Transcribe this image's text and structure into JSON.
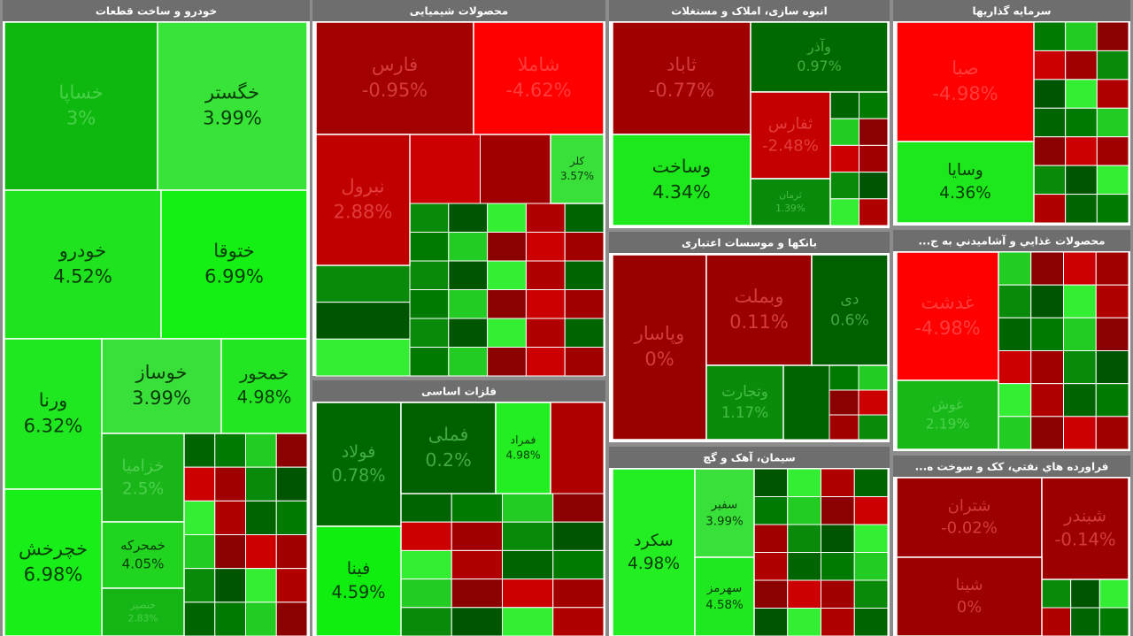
{
  "panels": [
    {
      "title": "خودرو و ساخت قطعات",
      "tiles": [
        {
          "name": "خساپا",
          "change": "3%",
          "color": "#0fb80f"
        },
        {
          "name": "خگستر",
          "change": "3.99%",
          "color": "#37e437"
        },
        {
          "name": "خودرو",
          "change": "4.52%",
          "color": "#1fe31f"
        },
        {
          "name": "ختوقا",
          "change": "6.99%",
          "color": "#14f014"
        },
        {
          "name": "ورنا",
          "change": "6.32%",
          "color": "#20e820"
        },
        {
          "name": "خوساز",
          "change": "3.99%",
          "color": "#3ae03a"
        },
        {
          "name": "خمحور",
          "change": "4.98%",
          "color": "#22e622"
        },
        {
          "name": "خزامیا",
          "change": "2.5%",
          "color": "#19b519"
        },
        {
          "name": "خمحرکه",
          "change": "4.05%",
          "color": "#20d420"
        },
        {
          "name": "خنصیر",
          "change": "2.83%",
          "color": "#14b514"
        },
        {
          "name": "خچرخش",
          "change": "6.98%",
          "color": "#18ee18"
        }
      ]
    },
    {
      "title": "محصولات شیمیایی",
      "tiles": [
        {
          "name": "فارس",
          "change": "-0.95%",
          "color": "#a30000"
        },
        {
          "name": "شاملا",
          "change": "-4.62%",
          "color": "#ff0000"
        },
        {
          "name": "نبرول",
          "change": "2.88%",
          "color": "#c00000"
        },
        {
          "name": "کلر",
          "change": "3.57%",
          "color": "#3ae03a"
        }
      ]
    },
    {
      "title": "فلزات اساسی",
      "tiles": [
        {
          "name": "فولاد",
          "change": "0.78%",
          "color": "#006800"
        },
        {
          "name": "فملی",
          "change": "0.2%",
          "color": "#006000"
        },
        {
          "name": "فمراد",
          "change": "4.98%",
          "color": "#22ee22"
        },
        {
          "name": "فینا",
          "change": "4.59%",
          "color": "#10ee10"
        }
      ]
    },
    {
      "title": "انبوه سازی، املاک و مستغلات",
      "tiles": [
        {
          "name": "ثاباد",
          "change": "-0.77%",
          "color": "#a00000"
        },
        {
          "name": "وآذر",
          "change": "0.97%",
          "color": "#006a00"
        },
        {
          "name": "ثفارس",
          "change": "-2.48%",
          "color": "#c40000"
        },
        {
          "name": "وساخت",
          "change": "4.34%",
          "color": "#1ce81c"
        },
        {
          "name": "ثرمان",
          "change": "1.39%",
          "color": "#0a8a0a"
        }
      ]
    },
    {
      "title": "بانکها و موسسات اعتباری",
      "tiles": [
        {
          "name": "وپاسار",
          "change": "0%",
          "color": "#990000"
        },
        {
          "name": "وبملت",
          "change": "0.11%",
          "color": "#9a0000"
        },
        {
          "name": "دی",
          "change": "0.6%",
          "color": "#005f00"
        },
        {
          "name": "وتجارت",
          "change": "1.17%",
          "color": "#0a8c0a"
        }
      ]
    },
    {
      "title": "سیمان، آهک و گچ",
      "tiles": [
        {
          "name": "سکرد",
          "change": "4.98%",
          "color": "#22ee22"
        },
        {
          "name": "سفیر",
          "change": "3.99%",
          "color": "#3ae03a"
        },
        {
          "name": "سهرمز",
          "change": "4.58%",
          "color": "#20e820"
        }
      ]
    },
    {
      "title": "سرمایه گذاریها",
      "tiles": [
        {
          "name": "صبا",
          "change": "-4.98%",
          "color": "#ff0000"
        },
        {
          "name": "وسایا",
          "change": "4.36%",
          "color": "#1ce81c"
        }
      ]
    },
    {
      "title": "محصولات غذایي و آشامیدني به ج...",
      "tiles": [
        {
          "name": "غدشت",
          "change": "-4.98%",
          "color": "#ff0000"
        },
        {
          "name": "غوش",
          "change": "2.19%",
          "color": "#18b818"
        }
      ]
    },
    {
      "title": "فراورده هاي نفتي، کک و سوخت ه...",
      "tiles": [
        {
          "name": "شتران",
          "change": "-0.02%",
          "color": "#9c0000"
        },
        {
          "name": "شبندر",
          "change": "-0.14%",
          "color": "#9c0000"
        },
        {
          "name": "شینا",
          "change": "0%",
          "color": "#9c0000"
        }
      ]
    }
  ]
}
